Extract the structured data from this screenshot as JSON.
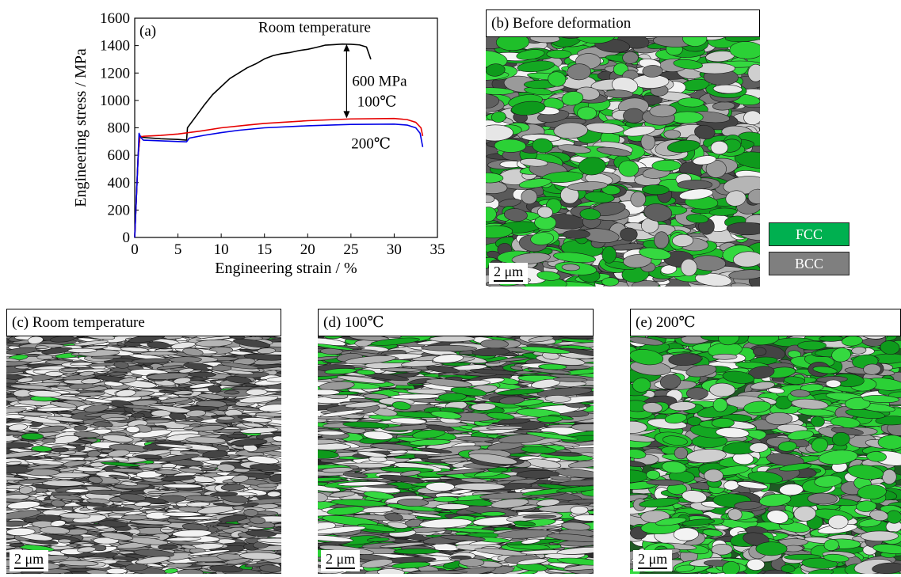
{
  "panels": {
    "a": {
      "label": "(a)"
    },
    "b": {
      "label": "(b) Before deformation",
      "scale": "2 μm"
    },
    "c": {
      "label": "(c) Room temperature",
      "scale": "2 μm"
    },
    "d": {
      "label": "(d) 100℃",
      "scale": "2 μm"
    },
    "e": {
      "label": "(e) 200℃",
      "scale": "2 μm"
    }
  },
  "legend": {
    "fcc": {
      "label": "FCC",
      "color": "#00b050"
    },
    "bcc": {
      "label": "BCC",
      "color": "#7f7f7f"
    }
  },
  "chart_data": {
    "type": "line",
    "title": "",
    "xlabel": "Engineering strain / %",
    "ylabel": "Engineering stress / MPa",
    "xlim": [
      0,
      35
    ],
    "ylim": [
      0,
      1600
    ],
    "xticks": [
      0,
      5,
      10,
      15,
      20,
      25,
      30,
      35
    ],
    "yticks": [
      0,
      200,
      400,
      600,
      800,
      1000,
      1200,
      1400,
      1600
    ],
    "grid": false,
    "annotations": [
      {
        "text": "600 MPa",
        "type": "double-arrow",
        "x": 24.5,
        "y_from": 870,
        "y_to": 1410
      }
    ],
    "series": [
      {
        "name": "Room temperature",
        "color": "#000000",
        "points": [
          [
            0,
            0
          ],
          [
            0.2,
            300
          ],
          [
            0.4,
            600
          ],
          [
            0.6,
            740
          ],
          [
            1,
            730
          ],
          [
            3,
            720
          ],
          [
            5,
            715
          ],
          [
            6,
            710
          ],
          [
            6.1,
            800
          ],
          [
            7,
            880
          ],
          [
            8,
            960
          ],
          [
            9,
            1040
          ],
          [
            10,
            1100
          ],
          [
            11,
            1160
          ],
          [
            12,
            1200
          ],
          [
            13,
            1240
          ],
          [
            14,
            1270
          ],
          [
            15,
            1300
          ],
          [
            16,
            1325
          ],
          [
            17,
            1340
          ],
          [
            18,
            1350
          ],
          [
            19,
            1365
          ],
          [
            20,
            1375
          ],
          [
            21,
            1390
          ],
          [
            22,
            1400
          ],
          [
            23,
            1405
          ],
          [
            24,
            1410
          ],
          [
            25,
            1410
          ],
          [
            26,
            1405
          ],
          [
            26.8,
            1390
          ],
          [
            27.3,
            1300
          ]
        ]
      },
      {
        "name": "100℃",
        "color": "#e60000",
        "points": [
          [
            0,
            0
          ],
          [
            0.2,
            300
          ],
          [
            0.4,
            600
          ],
          [
            0.6,
            735
          ],
          [
            1,
            738
          ],
          [
            3,
            745
          ],
          [
            5,
            755
          ],
          [
            8,
            780
          ],
          [
            10,
            800
          ],
          [
            13,
            820
          ],
          [
            15,
            832
          ],
          [
            20,
            852
          ],
          [
            25,
            865
          ],
          [
            30,
            868
          ],
          [
            31.5,
            860
          ],
          [
            32.5,
            840
          ],
          [
            33.1,
            800
          ],
          [
            33.3,
            740
          ]
        ]
      },
      {
        "name": "200℃",
        "color": "#0000e6",
        "points": [
          [
            0,
            0
          ],
          [
            0.2,
            300
          ],
          [
            0.4,
            600
          ],
          [
            0.5,
            760
          ],
          [
            0.7,
            730
          ],
          [
            1,
            710
          ],
          [
            3,
            705
          ],
          [
            5,
            700
          ],
          [
            6,
            698
          ],
          [
            6.3,
            725
          ],
          [
            8,
            745
          ],
          [
            10,
            765
          ],
          [
            12,
            782
          ],
          [
            15,
            800
          ],
          [
            20,
            815
          ],
          [
            25,
            825
          ],
          [
            30,
            827
          ],
          [
            31.5,
            820
          ],
          [
            32.5,
            800
          ],
          [
            33,
            760
          ],
          [
            33.3,
            660
          ]
        ]
      }
    ]
  }
}
